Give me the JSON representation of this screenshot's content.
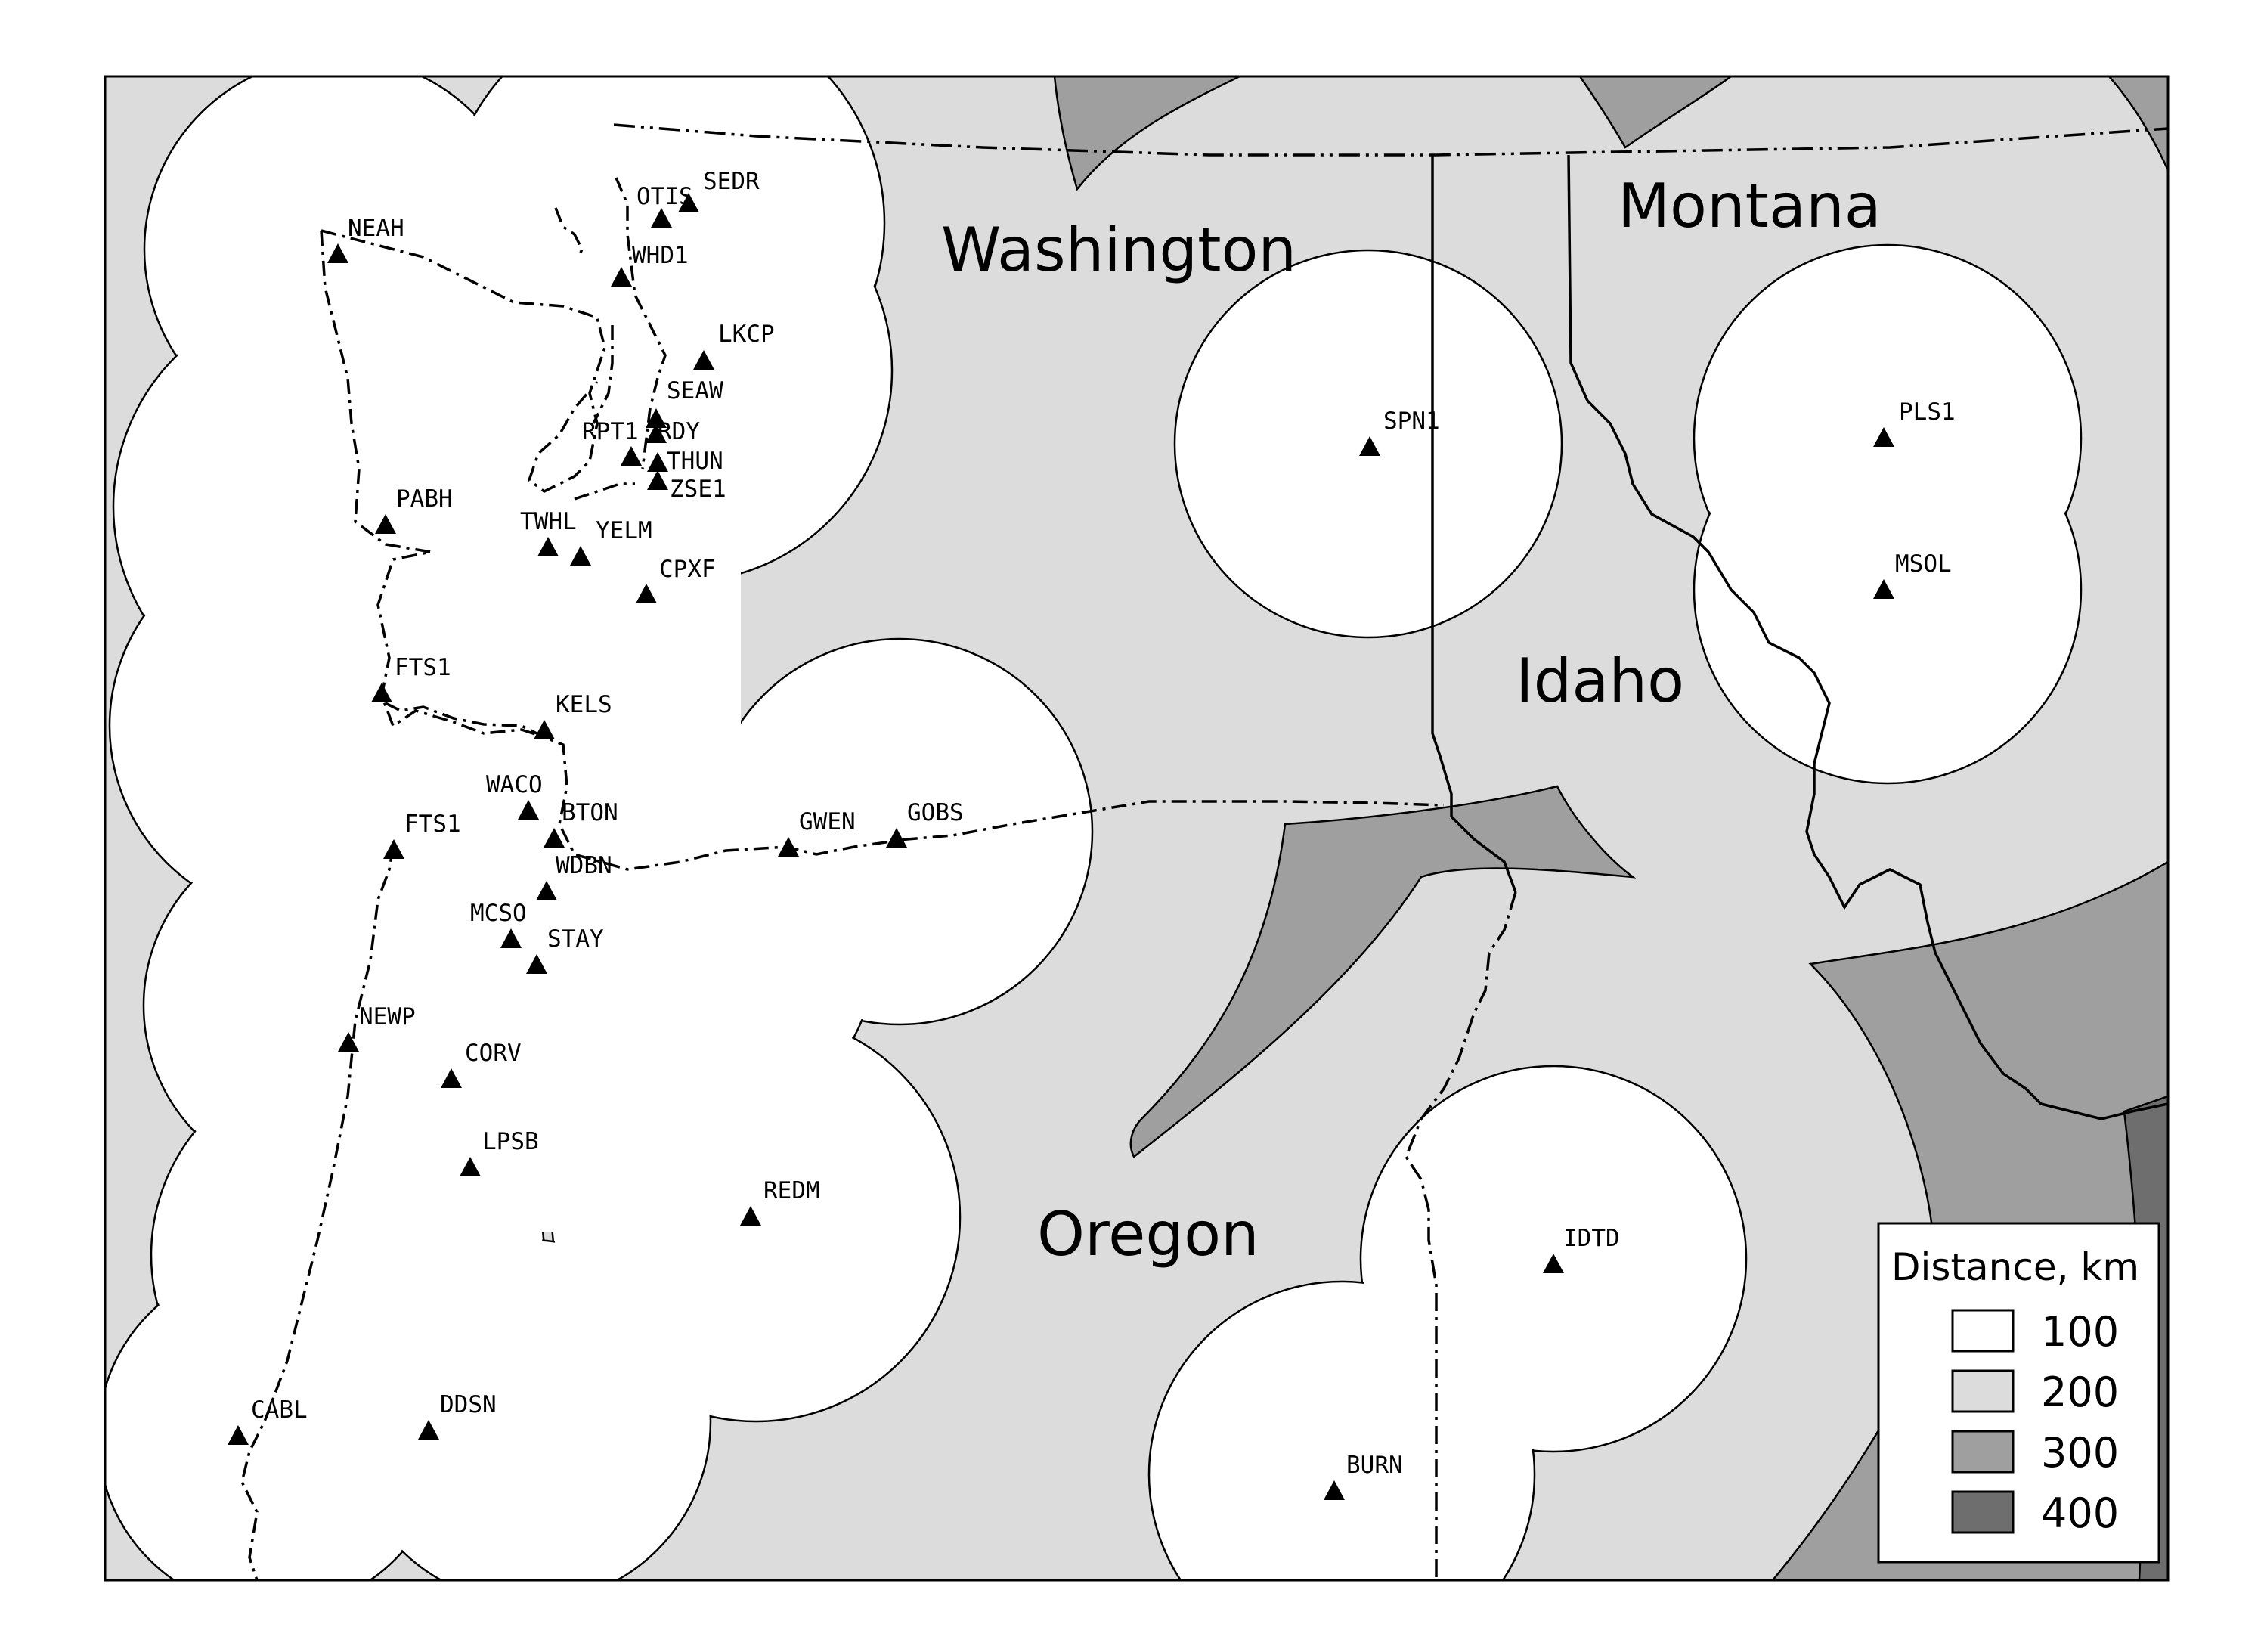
{
  "map": {
    "title": "",
    "colors": {
      "d100": "#ffffff",
      "d200": "#dcdcdc",
      "d300": "#9f9f9f",
      "d400": "#6e6e6e",
      "stroke": "#000000"
    },
    "states": [
      {
        "id": "washington",
        "label": "Washington"
      },
      {
        "id": "montana",
        "label": "Montana"
      },
      {
        "id": "idaho",
        "label": "Idaho"
      },
      {
        "id": "oregon",
        "label": "Oregon"
      }
    ],
    "stations": [
      {
        "id": "sedr",
        "label": "SEDR"
      },
      {
        "id": "otis",
        "label": "OTIS"
      },
      {
        "id": "neah",
        "label": "NEAH"
      },
      {
        "id": "whd1",
        "label": "WHD1"
      },
      {
        "id": "lkcp",
        "label": "LKCP"
      },
      {
        "id": "seaw",
        "label": "SEAW"
      },
      {
        "id": "rpt1",
        "label": "RPT1"
      },
      {
        "id": "rdy",
        "label": "RDY"
      },
      {
        "id": "thun",
        "label": "THUN"
      },
      {
        "id": "zse1",
        "label": "ZSE1"
      },
      {
        "id": "pabh",
        "label": "PABH"
      },
      {
        "id": "twhl",
        "label": "TWHL"
      },
      {
        "id": "yelm",
        "label": "YELM"
      },
      {
        "id": "cpxf",
        "label": "CPXF"
      },
      {
        "id": "fts1-north",
        "label": "FTS1"
      },
      {
        "id": "kels",
        "label": "KELS"
      },
      {
        "id": "waco",
        "label": "WACO"
      },
      {
        "id": "bton",
        "label": "BTON"
      },
      {
        "id": "fts1-south",
        "label": "FTS1"
      },
      {
        "id": "gwen",
        "label": "GWEN"
      },
      {
        "id": "gobs",
        "label": "GOBS"
      },
      {
        "id": "wdbn",
        "label": "WDBN"
      },
      {
        "id": "mcso",
        "label": "MCSO"
      },
      {
        "id": "stay",
        "label": "STAY"
      },
      {
        "id": "newp",
        "label": "NEWP"
      },
      {
        "id": "corv",
        "label": "CORV"
      },
      {
        "id": "lpsb",
        "label": "LPSB"
      },
      {
        "id": "redm",
        "label": "REDM"
      },
      {
        "id": "cabl",
        "label": "CABL"
      },
      {
        "id": "ddsn",
        "label": "DDSN"
      },
      {
        "id": "spn1",
        "label": "SPN1"
      },
      {
        "id": "pls1",
        "label": "PLS1"
      },
      {
        "id": "msol",
        "label": "MSOL"
      },
      {
        "id": "idtd",
        "label": "IDTD"
      },
      {
        "id": "burn",
        "label": "BURN"
      }
    ],
    "legend": {
      "title": "Distance, km",
      "items": [
        {
          "label": "100",
          "color": "#ffffff"
        },
        {
          "label": "200",
          "color": "#dcdcdc"
        },
        {
          "label": "300",
          "color": "#9f9f9f"
        },
        {
          "label": "400",
          "color": "#6e6e6e"
        }
      ]
    }
  }
}
